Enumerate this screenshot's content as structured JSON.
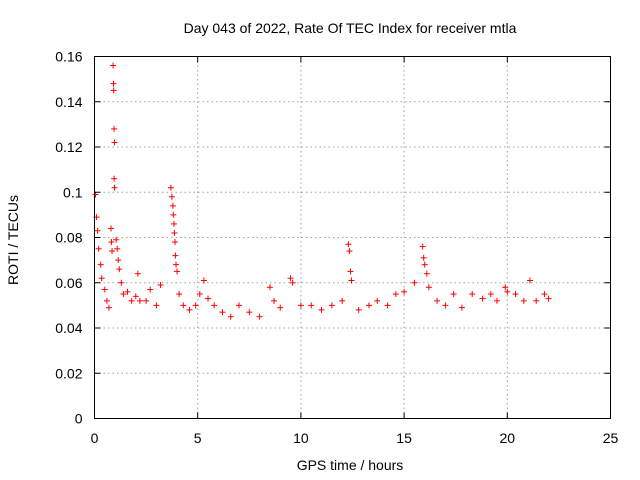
{
  "chart_data": {
    "type": "scatter",
    "title": "Day 043 of 2022, Rate Of TEC Index for receiver mtla",
    "xlabel": "GPS time / hours",
    "ylabel": "ROTI / TECUs",
    "xlim": [
      0,
      25
    ],
    "ylim": [
      0,
      0.16
    ],
    "xticks": [
      0,
      5,
      10,
      15,
      20,
      25
    ],
    "xtick_labels": [
      "0",
      "5",
      "10",
      "15",
      "20",
      "25"
    ],
    "yticks": [
      0,
      0.02,
      0.04,
      0.06,
      0.08,
      0.1,
      0.12,
      0.14,
      0.16
    ],
    "ytick_labels": [
      "0",
      "0.02",
      "0.04",
      "0.06",
      "0.08",
      "0.1",
      "0.12",
      "0.14",
      "0.16"
    ],
    "grid": true,
    "marker": "plus",
    "color": "#ff0000",
    "series": [
      {
        "name": "",
        "points": [
          [
            0.05,
            0.099
          ],
          [
            0.1,
            0.089
          ],
          [
            0.15,
            0.083
          ],
          [
            0.2,
            0.075
          ],
          [
            0.3,
            0.068
          ],
          [
            0.35,
            0.062
          ],
          [
            0.5,
            0.057
          ],
          [
            0.6,
            0.052
          ],
          [
            0.7,
            0.049
          ],
          [
            0.8,
            0.084
          ],
          [
            0.82,
            0.078
          ],
          [
            0.85,
            0.074
          ],
          [
            0.9,
            0.156
          ],
          [
            0.92,
            0.148
          ],
          [
            0.93,
            0.145
          ],
          [
            0.95,
            0.128
          ],
          [
            0.97,
            0.122
          ],
          [
            0.95,
            0.106
          ],
          [
            0.97,
            0.102
          ],
          [
            1.05,
            0.079
          ],
          [
            1.1,
            0.075
          ],
          [
            1.15,
            0.07
          ],
          [
            1.2,
            0.066
          ],
          [
            1.3,
            0.06
          ],
          [
            1.4,
            0.055
          ],
          [
            1.6,
            0.056
          ],
          [
            1.8,
            0.052
          ],
          [
            2.0,
            0.054
          ],
          [
            2.1,
            0.064
          ],
          [
            2.2,
            0.052
          ],
          [
            2.5,
            0.052
          ],
          [
            2.7,
            0.057
          ],
          [
            3.0,
            0.05
          ],
          [
            3.2,
            0.059
          ],
          [
            3.7,
            0.102
          ],
          [
            3.75,
            0.098
          ],
          [
            3.8,
            0.094
          ],
          [
            3.82,
            0.09
          ],
          [
            3.85,
            0.086
          ],
          [
            3.87,
            0.082
          ],
          [
            3.9,
            0.078
          ],
          [
            3.92,
            0.072
          ],
          [
            3.95,
            0.068
          ],
          [
            4.0,
            0.065
          ],
          [
            4.1,
            0.055
          ],
          [
            4.3,
            0.05
          ],
          [
            4.6,
            0.048
          ],
          [
            4.9,
            0.05
          ],
          [
            5.1,
            0.055
          ],
          [
            5.3,
            0.061
          ],
          [
            5.5,
            0.053
          ],
          [
            5.8,
            0.05
          ],
          [
            6.2,
            0.047
          ],
          [
            6.6,
            0.045
          ],
          [
            7.0,
            0.05
          ],
          [
            7.5,
            0.047
          ],
          [
            8.0,
            0.045
          ],
          [
            8.5,
            0.058
          ],
          [
            8.7,
            0.052
          ],
          [
            9.0,
            0.049
          ],
          [
            9.5,
            0.062
          ],
          [
            9.6,
            0.06
          ],
          [
            10.0,
            0.05
          ],
          [
            10.5,
            0.05
          ],
          [
            11.0,
            0.048
          ],
          [
            11.5,
            0.05
          ],
          [
            12.0,
            0.052
          ],
          [
            12.3,
            0.077
          ],
          [
            12.35,
            0.074
          ],
          [
            12.4,
            0.065
          ],
          [
            12.45,
            0.061
          ],
          [
            12.8,
            0.048
          ],
          [
            13.3,
            0.05
          ],
          [
            13.7,
            0.052
          ],
          [
            14.2,
            0.05
          ],
          [
            14.6,
            0.055
          ],
          [
            15.0,
            0.056
          ],
          [
            15.5,
            0.06
          ],
          [
            15.9,
            0.076
          ],
          [
            15.95,
            0.071
          ],
          [
            16.0,
            0.068
          ],
          [
            16.1,
            0.064
          ],
          [
            16.2,
            0.058
          ],
          [
            16.6,
            0.052
          ],
          [
            17.0,
            0.05
          ],
          [
            17.4,
            0.055
          ],
          [
            17.8,
            0.049
          ],
          [
            18.3,
            0.055
          ],
          [
            18.8,
            0.053
          ],
          [
            19.2,
            0.055
          ],
          [
            19.5,
            0.052
          ],
          [
            19.9,
            0.058
          ],
          [
            20.0,
            0.056
          ],
          [
            20.4,
            0.055
          ],
          [
            20.8,
            0.052
          ],
          [
            21.1,
            0.061
          ],
          [
            21.4,
            0.052
          ],
          [
            21.8,
            0.055
          ],
          [
            22.0,
            0.053
          ]
        ]
      }
    ]
  }
}
